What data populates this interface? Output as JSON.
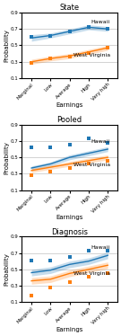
{
  "chart_data": [
    {
      "type": "line",
      "title": "State",
      "x_label": "Earnings",
      "y_label": "Probability",
      "categories": [
        "Marginal",
        "Low",
        "Average",
        "High",
        "Very high"
      ],
      "ylim": [
        0.1,
        0.9
      ],
      "yticks": [
        0.1,
        0.3,
        0.5,
        0.7,
        0.9
      ],
      "grid": "y",
      "series": [
        {
          "name": "Hawaii",
          "values": [
            0.59,
            0.62,
            0.67,
            0.72,
            0.7
          ],
          "ci_low": [
            0.55,
            0.59,
            0.64,
            0.69,
            0.67
          ],
          "ci_high": [
            0.63,
            0.65,
            0.7,
            0.75,
            0.73
          ],
          "points": [
            0.6,
            0.62,
            0.67,
            0.72,
            0.7
          ],
          "marker": "square"
        },
        {
          "name": "West Virginia",
          "values": [
            0.3,
            0.34,
            0.37,
            0.42,
            0.47
          ],
          "ci_low": [
            0.27,
            0.31,
            0.34,
            0.39,
            0.44
          ],
          "ci_high": [
            0.33,
            0.37,
            0.4,
            0.45,
            0.5
          ],
          "points": [
            0.29,
            0.34,
            0.36,
            0.41,
            0.47
          ],
          "marker": "square"
        }
      ]
    },
    {
      "type": "line",
      "title": "Pooled",
      "x_label": "Earnings",
      "y_label": "Probability",
      "categories": [
        "Marginal",
        "Low",
        "Average",
        "High",
        "Very high"
      ],
      "ylim": [
        0.1,
        0.9
      ],
      "yticks": [
        0.1,
        0.3,
        0.5,
        0.7,
        0.9
      ],
      "grid": "y",
      "series": [
        {
          "name": "Hawaii",
          "values": [
            0.37,
            0.42,
            0.5,
            0.55,
            0.6
          ],
          "ci_low": [
            0.345,
            0.395,
            0.47,
            0.52,
            0.57
          ],
          "ci_high": [
            0.395,
            0.445,
            0.53,
            0.58,
            0.63
          ],
          "points": [
            0.62,
            0.62,
            0.65,
            0.73,
            0.68
          ],
          "marker": "square"
        },
        {
          "name": "West Virginia",
          "values": [
            0.34,
            0.38,
            0.42,
            0.46,
            0.5
          ],
          "ci_low": [
            0.315,
            0.355,
            0.39,
            0.43,
            0.47
          ],
          "ci_high": [
            0.365,
            0.405,
            0.45,
            0.49,
            0.53
          ],
          "points": [
            0.28,
            0.33,
            0.37,
            0.42,
            0.46
          ],
          "marker": "square"
        }
      ]
    },
    {
      "type": "line",
      "title": "Diagnosis",
      "x_label": "Earnings",
      "y_label": "Probability",
      "categories": [
        "Marginal",
        "Low",
        "Average",
        "High",
        "Very high"
      ],
      "ylim": [
        0.1,
        0.9
      ],
      "yticks": [
        0.1,
        0.3,
        0.5,
        0.7,
        0.9
      ],
      "grid": "y",
      "series": [
        {
          "name": "Hawaii",
          "values": [
            0.46,
            0.49,
            0.56,
            0.6,
            0.67
          ],
          "ci_low": [
            0.42,
            0.45,
            0.52,
            0.56,
            0.63
          ],
          "ci_high": [
            0.5,
            0.53,
            0.6,
            0.64,
            0.71
          ],
          "points": [
            0.61,
            0.61,
            0.65,
            0.73,
            0.73
          ],
          "marker": "square"
        },
        {
          "name": "West Virginia",
          "values": [
            0.36,
            0.38,
            0.45,
            0.5,
            0.55
          ],
          "ci_low": [
            0.32,
            0.34,
            0.41,
            0.46,
            0.51
          ],
          "ci_high": [
            0.4,
            0.42,
            0.49,
            0.54,
            0.59
          ],
          "points": [
            0.18,
            0.28,
            0.35,
            0.41,
            0.45
          ],
          "marker": "square"
        }
      ]
    }
  ]
}
